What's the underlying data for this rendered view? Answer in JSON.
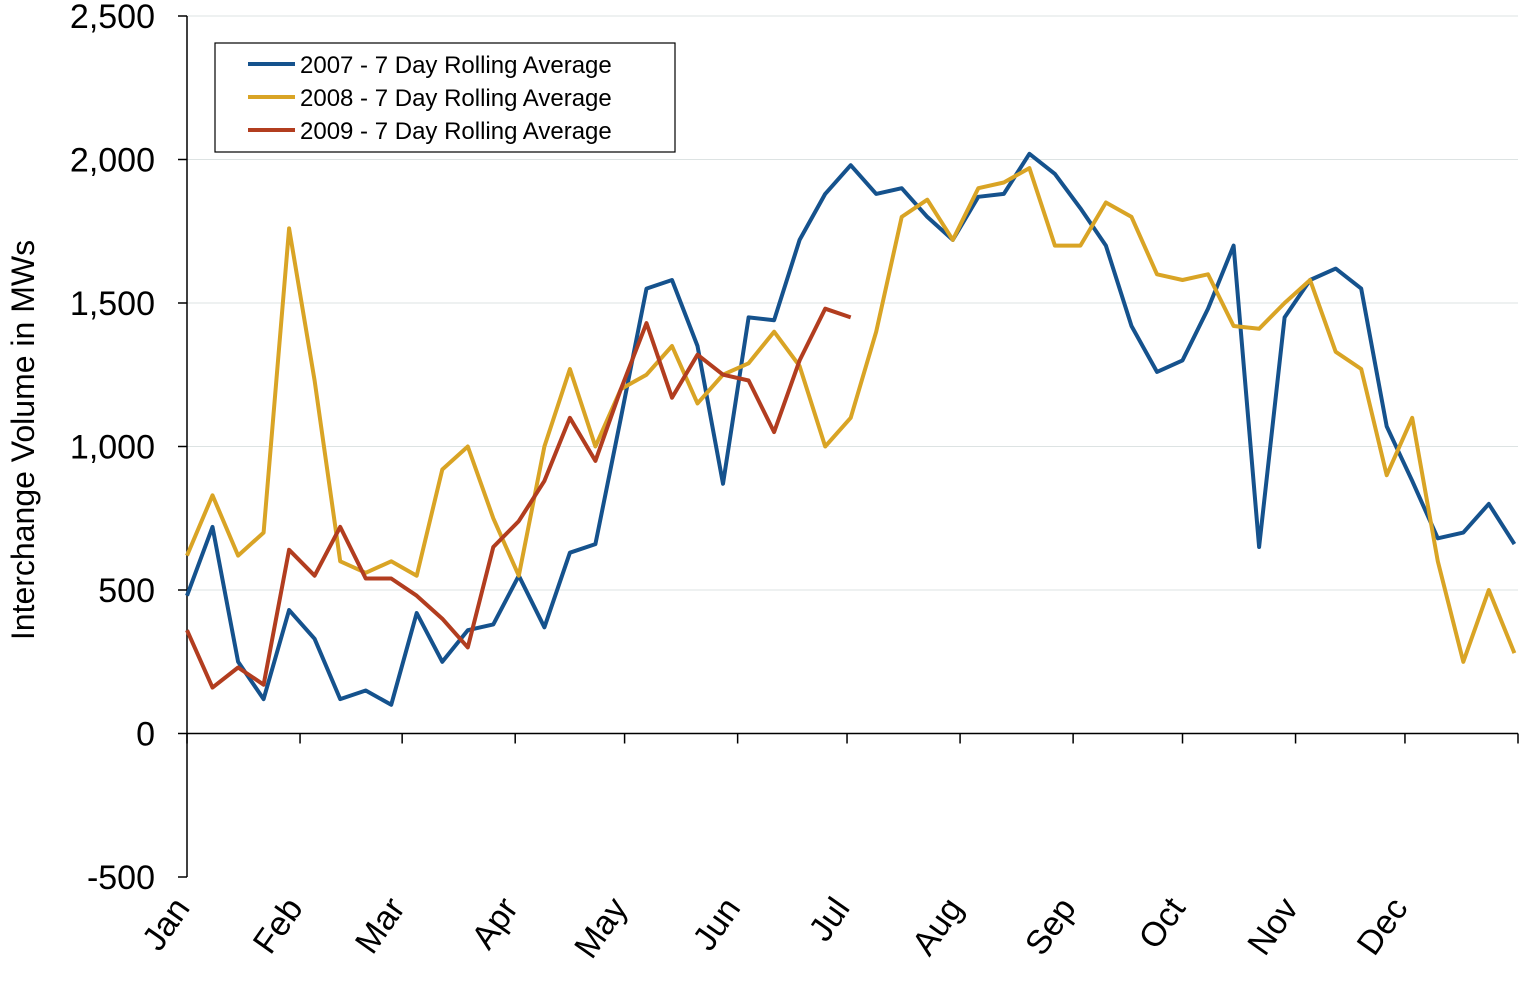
{
  "chart_data": {
    "type": "line",
    "ylabel": "Interchange Volume in MWs",
    "x": [
      0,
      7,
      14,
      21,
      28,
      35,
      42,
      49,
      56,
      63,
      70,
      77,
      84,
      91,
      98,
      105,
      112,
      119,
      126,
      133,
      140,
      147,
      154,
      161,
      168,
      175,
      182,
      189,
      196,
      203,
      210,
      217,
      224,
      231,
      238,
      245,
      252,
      259,
      266,
      273,
      280,
      287,
      294,
      301,
      308,
      315,
      322,
      329,
      336,
      343,
      350,
      357,
      364
    ],
    "xlim": [
      0,
      365
    ],
    "xticks": [
      {
        "value": 0,
        "label": "Jan"
      },
      {
        "value": 31,
        "label": "Feb"
      },
      {
        "value": 59,
        "label": "Mar"
      },
      {
        "value": 90,
        "label": "Apr"
      },
      {
        "value": 120,
        "label": "May"
      },
      {
        "value": 151,
        "label": "Jun"
      },
      {
        "value": 181,
        "label": "Jul"
      },
      {
        "value": 212,
        "label": "Aug"
      },
      {
        "value": 243,
        "label": "Sep"
      },
      {
        "value": 273,
        "label": "Oct"
      },
      {
        "value": 304,
        "label": "Nov"
      },
      {
        "value": 334,
        "label": "Dec"
      }
    ],
    "ylim": [
      -500,
      2500
    ],
    "yticks": [
      -500,
      0,
      500,
      {
        "value": 1000,
        "label": "1,000"
      },
      {
        "value": 1500,
        "label": "1,500"
      },
      {
        "value": 2000,
        "label": "2,000"
      },
      {
        "value": 2500,
        "label": "2,500"
      }
    ],
    "grid": true,
    "legend": "upper left",
    "series": [
      {
        "name": "2007 - 7 Day Rolling Average",
        "color": "#15528d",
        "values": [
          480,
          720,
          250,
          120,
          430,
          330,
          120,
          150,
          100,
          420,
          250,
          360,
          380,
          550,
          370,
          630,
          660,
          1100,
          1550,
          1580,
          1350,
          870,
          1450,
          1440,
          1720,
          1880,
          1980,
          1880,
          1900,
          1800,
          1720,
          1870,
          1880,
          2020,
          1950,
          1830,
          1700,
          1420,
          1260,
          1300,
          1480,
          1700,
          650,
          1450,
          1580,
          1620,
          1550,
          1070,
          880,
          680,
          700,
          800,
          660
        ]
      },
      {
        "name": "2008 - 7 Day Rolling Average",
        "color": "#d9a425",
        "values": [
          620,
          830,
          620,
          700,
          1760,
          1230,
          600,
          560,
          600,
          550,
          920,
          1000,
          750,
          550,
          1000,
          1270,
          1000,
          1200,
          1250,
          1350,
          1150,
          1250,
          1290,
          1400,
          1280,
          1000,
          1100,
          1400,
          1800,
          1860,
          1720,
          1900,
          1920,
          1970,
          1700,
          1700,
          1850,
          1800,
          1600,
          1580,
          1600,
          1420,
          1410,
          1500,
          1580,
          1330,
          1270,
          900,
          1100,
          600,
          250,
          500,
          280
        ]
      },
      {
        "name": "2009 - 7 Day Rolling Average",
        "color": "#b23d1f",
        "values": [
          360,
          160,
          230,
          170,
          640,
          550,
          720,
          540,
          540,
          480,
          400,
          300,
          650,
          740,
          880,
          1100,
          950,
          1200,
          1430,
          1170,
          1320,
          1250,
          1230,
          1050,
          1300,
          1480,
          1450,
          null,
          null,
          null,
          null,
          null,
          null,
          null,
          null,
          null,
          null,
          null,
          null,
          null,
          null,
          null,
          null,
          null,
          null,
          null,
          null,
          null,
          null,
          null,
          null,
          null,
          null
        ]
      }
    ]
  }
}
